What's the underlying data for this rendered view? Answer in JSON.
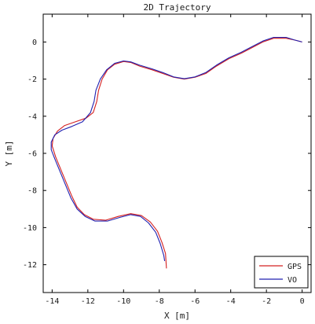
{
  "chart_data": {
    "type": "line",
    "title": "2D Trajectory",
    "xlabel": "X [m]",
    "ylabel": "Y [m]",
    "xlim": [
      -14.5,
      0.5
    ],
    "ylim": [
      -13.5,
      1.5
    ],
    "xticks": [
      -14,
      -12,
      -10,
      -8,
      -6,
      -4,
      -2,
      0
    ],
    "yticks": [
      0,
      -2,
      -4,
      -6,
      -8,
      -10,
      -12
    ],
    "grid": false,
    "legend": "bottom-right",
    "series": [
      {
        "name": "GPS",
        "color": "#d42020",
        "points": [
          [
            0.0,
            0.0
          ],
          [
            -0.4,
            0.1
          ],
          [
            -0.9,
            0.2
          ],
          [
            -1.6,
            0.2
          ],
          [
            -2.2,
            0.0
          ],
          [
            -2.8,
            -0.3
          ],
          [
            -3.4,
            -0.6
          ],
          [
            -4.1,
            -0.9
          ],
          [
            -4.8,
            -1.3
          ],
          [
            -5.4,
            -1.7
          ],
          [
            -6.0,
            -1.9
          ],
          [
            -6.6,
            -2.0
          ],
          [
            -7.2,
            -1.9
          ],
          [
            -7.8,
            -1.7
          ],
          [
            -8.4,
            -1.5
          ],
          [
            -9.1,
            -1.3
          ],
          [
            -9.6,
            -1.1
          ],
          [
            -10.0,
            -1.05
          ],
          [
            -10.5,
            -1.2
          ],
          [
            -10.9,
            -1.5
          ],
          [
            -11.2,
            -2.0
          ],
          [
            -11.4,
            -2.6
          ],
          [
            -11.5,
            -3.2
          ],
          [
            -11.7,
            -3.8
          ],
          [
            -12.1,
            -4.1
          ],
          [
            -12.7,
            -4.3
          ],
          [
            -13.3,
            -4.5
          ],
          [
            -13.7,
            -4.8
          ],
          [
            -13.95,
            -5.2
          ],
          [
            -14.0,
            -5.6
          ],
          [
            -13.8,
            -6.2
          ],
          [
            -13.5,
            -6.9
          ],
          [
            -13.2,
            -7.6
          ],
          [
            -12.9,
            -8.3
          ],
          [
            -12.6,
            -8.9
          ],
          [
            -12.2,
            -9.3
          ],
          [
            -11.7,
            -9.55
          ],
          [
            -11.0,
            -9.6
          ],
          [
            -10.3,
            -9.4
          ],
          [
            -9.6,
            -9.25
          ],
          [
            -9.0,
            -9.35
          ],
          [
            -8.5,
            -9.7
          ],
          [
            -8.1,
            -10.2
          ],
          [
            -7.85,
            -10.8
          ],
          [
            -7.65,
            -11.4
          ],
          [
            -7.6,
            -12.2
          ]
        ]
      },
      {
        "name": "VO",
        "color": "#2020b0",
        "points": [
          [
            0.0,
            0.0
          ],
          [
            -0.4,
            0.1
          ],
          [
            -0.9,
            0.25
          ],
          [
            -1.6,
            0.25
          ],
          [
            -2.2,
            0.05
          ],
          [
            -2.8,
            -0.25
          ],
          [
            -3.4,
            -0.55
          ],
          [
            -4.1,
            -0.85
          ],
          [
            -4.8,
            -1.25
          ],
          [
            -5.4,
            -1.65
          ],
          [
            -6.0,
            -1.88
          ],
          [
            -6.6,
            -1.98
          ],
          [
            -7.2,
            -1.88
          ],
          [
            -7.8,
            -1.65
          ],
          [
            -8.4,
            -1.45
          ],
          [
            -9.1,
            -1.25
          ],
          [
            -9.6,
            -1.07
          ],
          [
            -10.0,
            -1.02
          ],
          [
            -10.5,
            -1.15
          ],
          [
            -10.95,
            -1.5
          ],
          [
            -11.3,
            -2.0
          ],
          [
            -11.55,
            -2.6
          ],
          [
            -11.65,
            -3.2
          ],
          [
            -11.85,
            -3.8
          ],
          [
            -12.3,
            -4.3
          ],
          [
            -12.9,
            -4.55
          ],
          [
            -13.45,
            -4.75
          ],
          [
            -13.85,
            -5.0
          ],
          [
            -14.05,
            -5.4
          ],
          [
            -14.05,
            -5.8
          ],
          [
            -13.85,
            -6.3
          ],
          [
            -13.55,
            -7.0
          ],
          [
            -13.25,
            -7.7
          ],
          [
            -12.95,
            -8.4
          ],
          [
            -12.6,
            -9.0
          ],
          [
            -12.15,
            -9.4
          ],
          [
            -11.6,
            -9.65
          ],
          [
            -10.9,
            -9.65
          ],
          [
            -10.2,
            -9.45
          ],
          [
            -9.6,
            -9.3
          ],
          [
            -9.05,
            -9.4
          ],
          [
            -8.6,
            -9.75
          ],
          [
            -8.2,
            -10.25
          ],
          [
            -7.95,
            -10.85
          ],
          [
            -7.75,
            -11.5
          ],
          [
            -7.7,
            -11.8
          ]
        ]
      }
    ]
  }
}
